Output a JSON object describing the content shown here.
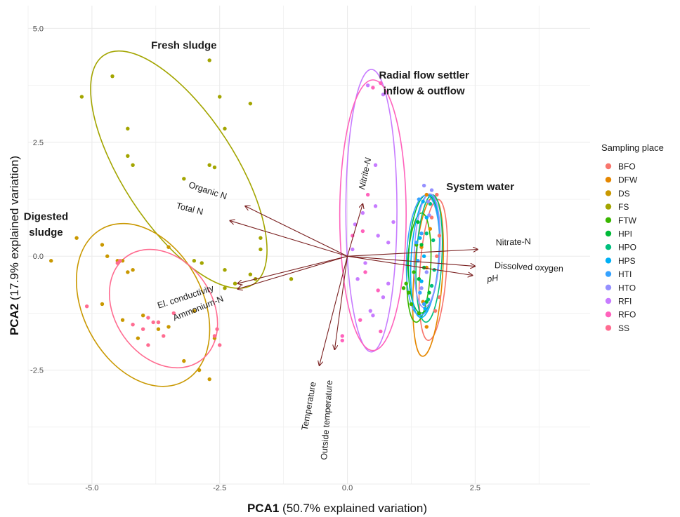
{
  "chart_data": {
    "type": "scatter",
    "xlabel_bold": "PCA1",
    "xlabel_rest": " (50.7% explained variation)",
    "ylabel_bold": "PCA2",
    "ylabel_rest": " (17.9% explained variation)",
    "xlim": [
      -6.25,
      4.75
    ],
    "ylim": [
      -5.0,
      5.5
    ],
    "x_ticks": [
      {
        "value": -5.0,
        "label": "-5.0"
      },
      {
        "value": -2.5,
        "label": "-2.5"
      },
      {
        "value": 0.0,
        "label": "0.0"
      },
      {
        "value": 2.5,
        "label": "2.5"
      }
    ],
    "y_ticks": [
      {
        "value": -2.5,
        "label": "-2.5"
      },
      {
        "value": 0.0,
        "label": "0.0"
      },
      {
        "value": 2.5,
        "label": "2.5"
      },
      {
        "value": 5.0,
        "label": "5.0"
      }
    ],
    "grid": true,
    "legend": {
      "title": "Sampling place",
      "placement": "right",
      "items": [
        {
          "label": "BFO",
          "color": "#F8766D"
        },
        {
          "label": "DFW",
          "color": "#E58700"
        },
        {
          "label": "DS",
          "color": "#C99800"
        },
        {
          "label": "FS",
          "color": "#A3A500"
        },
        {
          "label": "FTW",
          "color": "#39B600"
        },
        {
          "label": "HPI",
          "color": "#00BA38"
        },
        {
          "label": "HPO",
          "color": "#00BF7D"
        },
        {
          "label": "HPS",
          "color": "#00B0F6"
        },
        {
          "label": "HTI",
          "color": "#35A2FF"
        },
        {
          "label": "HTO",
          "color": "#9590FF"
        },
        {
          "label": "RFI",
          "color": "#C77CFF"
        },
        {
          "label": "RFO",
          "color": "#FF62BC"
        },
        {
          "label": "SS",
          "color": "#FF6C91"
        }
      ]
    },
    "group_labels": [
      {
        "text": "Fresh sludge",
        "x": -3.2,
        "y": 4.55
      },
      {
        "text": "Radial flow settler",
        "x": 1.5,
        "y": 3.9
      },
      {
        "text": "inflow & outflow",
        "x": 1.5,
        "y": 3.55
      },
      {
        "text": "System water",
        "x": 2.6,
        "y": 1.45
      },
      {
        "text": "Digested",
        "x": -5.9,
        "y": 0.8
      },
      {
        "text": "sludge",
        "x": -5.9,
        "y": 0.45
      }
    ],
    "ellipses": [
      {
        "group": "FS",
        "cx": -3.3,
        "cy": 1.9,
        "rx": 1.1,
        "ry": 3.0,
        "angle": -33
      },
      {
        "group": "DS",
        "cx": -4.0,
        "cy": -1.07,
        "rx": 1.17,
        "ry": 1.9,
        "angle": -28
      },
      {
        "group": "SS",
        "cx": -3.6,
        "cy": -1.15,
        "rx": 0.95,
        "ry": 1.4,
        "angle": -35
      },
      {
        "group": "RFI",
        "cx": 0.47,
        "cy": 1.0,
        "rx": 0.5,
        "ry": 3.1,
        "angle": 0
      },
      {
        "group": "RFO",
        "cx": 0.5,
        "cy": 0.9,
        "rx": 0.65,
        "ry": 2.97,
        "angle": 0
      },
      {
        "group": "BFO",
        "cx": 1.68,
        "cy": -0.3,
        "rx": 0.26,
        "ry": 1.55,
        "angle": 4
      },
      {
        "group": "DFW",
        "cx": 1.58,
        "cy": -0.45,
        "rx": 0.28,
        "ry": 1.75,
        "angle": 4
      },
      {
        "group": "FTW",
        "cx": 1.4,
        "cy": -0.25,
        "rx": 0.23,
        "ry": 1.2,
        "angle": 3
      },
      {
        "group": "HPI",
        "cx": 1.5,
        "cy": 0.05,
        "rx": 0.3,
        "ry": 1.3,
        "angle": 3
      },
      {
        "group": "HPO",
        "cx": 1.6,
        "cy": -0.05,
        "rx": 0.25,
        "ry": 1.4,
        "angle": 3
      },
      {
        "group": "HPS",
        "cx": 1.52,
        "cy": 0.0,
        "rx": 0.27,
        "ry": 1.35,
        "angle": 4
      },
      {
        "group": "HTI",
        "cx": 1.48,
        "cy": 0.02,
        "rx": 0.32,
        "ry": 1.32,
        "angle": 3
      },
      {
        "group": "HTO",
        "cx": 1.56,
        "cy": 0.12,
        "rx": 0.25,
        "ry": 1.25,
        "angle": 3
      }
    ],
    "loadings": [
      {
        "label": "Organic N",
        "x": -2.0,
        "y": 1.1,
        "lx": -2.75,
        "ly": 1.38,
        "rotate": 18,
        "italic": false
      },
      {
        "label": "Total N",
        "x": -2.3,
        "y": 0.78,
        "lx": -3.1,
        "ly": 0.98,
        "rotate": 14,
        "italic": false
      },
      {
        "label": "Nitrite-N",
        "x": 0.3,
        "y": 1.15,
        "lx": 0.4,
        "ly": 1.8,
        "rotate": -78,
        "italic": true
      },
      {
        "label": "Nitrate-N",
        "x": 2.55,
        "y": 0.15,
        "lx": 3.25,
        "ly": 0.25,
        "rotate": -2,
        "italic": false
      },
      {
        "label": "Dissolved oxygen",
        "x": 2.5,
        "y": -0.22,
        "lx": 3.55,
        "ly": -0.3,
        "rotate": 3,
        "italic": false
      },
      {
        "label": "pH",
        "x": 2.45,
        "y": -0.42,
        "lx": 2.85,
        "ly": -0.55,
        "rotate": -8,
        "italic": true
      },
      {
        "label": "El. conductivity",
        "x": -2.15,
        "y": -0.6,
        "lx": -3.15,
        "ly": -0.95,
        "rotate": -18,
        "italic": false
      },
      {
        "label": "Ammonium-N",
        "x": -2.15,
        "y": -0.72,
        "lx": -2.9,
        "ly": -1.2,
        "rotate": -22,
        "italic": false
      },
      {
        "label": "Temperature",
        "x": -0.55,
        "y": -2.4,
        "lx": -0.7,
        "ly": -3.3,
        "rotate": -80,
        "italic": false
      },
      {
        "label": "Outside temperature",
        "x": -0.25,
        "y": -2.05,
        "lx": -0.35,
        "ly": -3.6,
        "rotate": -86,
        "italic": false
      }
    ],
    "points": {
      "FS": [
        [
          -5.2,
          3.5
        ],
        [
          -4.6,
          3.95
        ],
        [
          -2.7,
          4.3
        ],
        [
          -2.5,
          3.5
        ],
        [
          -2.4,
          2.8
        ],
        [
          -4.3,
          2.8
        ],
        [
          -4.3,
          2.2
        ],
        [
          -4.2,
          2.0
        ],
        [
          -3.2,
          1.7
        ],
        [
          -2.7,
          2.0
        ],
        [
          -2.6,
          1.95
        ],
        [
          -1.9,
          3.35
        ],
        [
          -1.7,
          0.4
        ],
        [
          -1.7,
          0.15
        ],
        [
          -1.9,
          -0.4
        ],
        [
          -1.8,
          -0.5
        ],
        [
          -2.2,
          -0.6
        ],
        [
          -1.1,
          -0.5
        ],
        [
          -2.4,
          -0.7
        ],
        [
          -3.0,
          -0.1
        ],
        [
          -2.85,
          -0.15
        ],
        [
          -2.4,
          -0.3
        ]
      ],
      "DS": [
        [
          -5.8,
          -0.1
        ],
        [
          -5.3,
          0.4
        ],
        [
          -4.8,
          0.25
        ],
        [
          -4.7,
          0.0
        ],
        [
          -4.3,
          -0.35
        ],
        [
          -4.5,
          -0.1
        ],
        [
          -4.8,
          -1.05
        ],
        [
          -4.4,
          -1.4
        ],
        [
          -4.1,
          -1.8
        ],
        [
          -3.7,
          -1.45
        ],
        [
          -3.5,
          -1.55
        ],
        [
          -3.2,
          -2.3
        ],
        [
          -2.9,
          -2.5
        ],
        [
          -2.7,
          -2.7
        ],
        [
          -3.7,
          -1.6
        ],
        [
          -4.0,
          -1.3
        ],
        [
          -2.6,
          -1.8
        ],
        [
          -3.0,
          -1.2
        ],
        [
          -3.5,
          0.2
        ],
        [
          -4.4,
          -0.1
        ],
        [
          -4.2,
          -0.3
        ]
      ],
      "SS": [
        [
          -5.1,
          -1.1
        ],
        [
          -4.5,
          -0.15
        ],
        [
          -4.45,
          -0.1
        ],
        [
          -3.9,
          -1.35
        ],
        [
          -3.8,
          -1.45
        ],
        [
          -3.7,
          -1.45
        ],
        [
          -3.6,
          -1.75
        ],
        [
          -3.9,
          -1.95
        ],
        [
          -2.6,
          -1.75
        ],
        [
          -2.5,
          -1.95
        ],
        [
          -3.4,
          -1.25
        ],
        [
          -2.55,
          -1.6
        ],
        [
          -4.2,
          -1.5
        ],
        [
          -4.0,
          -1.6
        ]
      ],
      "RFI": [
        [
          0.4,
          3.75
        ],
        [
          0.7,
          3.55
        ],
        [
          0.55,
          2.0
        ],
        [
          0.55,
          1.1
        ],
        [
          0.3,
          0.95
        ],
        [
          0.15,
          0.7
        ],
        [
          0.1,
          0.15
        ],
        [
          0.35,
          -0.15
        ],
        [
          0.8,
          -0.6
        ],
        [
          0.7,
          -0.9
        ],
        [
          0.45,
          -1.2
        ],
        [
          0.5,
          -1.3
        ],
        [
          0.8,
          0.3
        ],
        [
          0.9,
          0.75
        ],
        [
          0.2,
          -0.5
        ],
        [
          0.6,
          0.45
        ]
      ],
      "RFO": [
        [
          0.5,
          3.7
        ],
        [
          0.65,
          3.8
        ],
        [
          0.4,
          1.35
        ],
        [
          0.3,
          0.55
        ],
        [
          0.1,
          0.45
        ],
        [
          0.35,
          -0.35
        ],
        [
          0.65,
          -1.65
        ],
        [
          -0.1,
          -1.75
        ],
        [
          -0.1,
          -1.85
        ],
        [
          0.6,
          -0.75
        ],
        [
          0.25,
          -1.4
        ]
      ],
      "BFO": [
        [
          1.75,
          1.35
        ],
        [
          1.8,
          0.45
        ],
        [
          1.75,
          0.0
        ],
        [
          1.8,
          -0.9
        ],
        [
          1.72,
          -1.2
        ],
        [
          1.65,
          0.85
        ]
      ],
      "DFW": [
        [
          1.55,
          1.35
        ],
        [
          1.62,
          0.6
        ],
        [
          1.55,
          -0.25
        ],
        [
          1.48,
          -1.0
        ],
        [
          1.55,
          -1.55
        ],
        [
          1.45,
          0.2
        ]
      ],
      "FTW": [
        [
          1.15,
          -0.6
        ],
        [
          1.2,
          -0.8
        ],
        [
          1.25,
          -1.05
        ],
        [
          1.4,
          -1.25
        ],
        [
          1.35,
          0.25
        ],
        [
          1.3,
          -0.35
        ],
        [
          1.1,
          -0.7
        ]
      ],
      "HPI": [
        [
          1.38,
          0.75
        ],
        [
          1.45,
          0.25
        ],
        [
          1.5,
          -0.25
        ],
        [
          1.6,
          -0.8
        ],
        [
          1.55,
          -1.0
        ],
        [
          1.4,
          -0.5
        ]
      ],
      "HPO": [
        [
          1.62,
          1.15
        ],
        [
          1.68,
          0.35
        ],
        [
          1.7,
          -0.3
        ],
        [
          1.58,
          -0.95
        ],
        [
          1.65,
          -0.65
        ],
        [
          1.55,
          0.5
        ]
      ],
      "HPS": [
        [
          1.48,
          1.2
        ],
        [
          1.55,
          0.85
        ],
        [
          1.5,
          0.0
        ],
        [
          1.45,
          -0.55
        ],
        [
          1.52,
          -1.15
        ],
        [
          1.42,
          0.4
        ]
      ],
      "HTI": [
        [
          1.4,
          1.25
        ],
        [
          1.45,
          0.5
        ],
        [
          1.38,
          -0.1
        ],
        [
          1.42,
          -0.8
        ],
        [
          1.5,
          -1.05
        ],
        [
          1.35,
          0.3
        ]
      ],
      "HTO": [
        [
          1.5,
          1.55
        ],
        [
          1.65,
          1.45
        ],
        [
          1.58,
          1.2
        ],
        [
          1.6,
          0.9
        ],
        [
          1.55,
          -0.35
        ],
        [
          1.45,
          -0.7
        ]
      ]
    }
  }
}
